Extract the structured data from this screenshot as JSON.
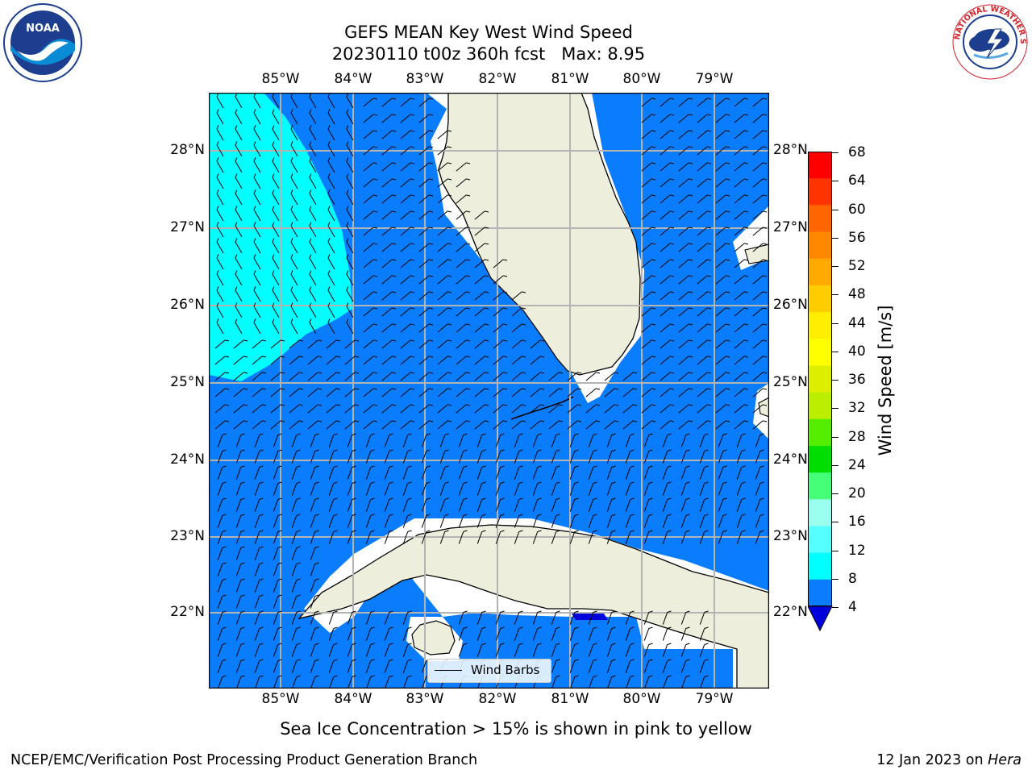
{
  "title": {
    "line1": "GEFS MEAN Key West Wind Speed",
    "line2": "20230110 t00z 360h fcst   Max: 8.95"
  },
  "map": {
    "lon_ticks": [
      "85°W",
      "84°W",
      "83°W",
      "82°W",
      "81°W",
      "80°W",
      "79°W"
    ],
    "lat_ticks": [
      "28°N",
      "27°N",
      "26°N",
      "25°N",
      "24°N",
      "23°N",
      "22°N"
    ],
    "ocean_color": "#0a7dff",
    "high_wind_color": "#00ffff",
    "land_color": "#eeeedc",
    "grid_color": "#b4b4b4",
    "places": [
      "Florida",
      "Cuba",
      "Isla de la Juventud",
      "Florida Keys",
      "Bahamas"
    ]
  },
  "colorbar": {
    "label": "Wind Speed [m/s]",
    "ticks": [
      "68",
      "64",
      "60",
      "56",
      "52",
      "48",
      "44",
      "40",
      "36",
      "32",
      "28",
      "24",
      "20",
      "16",
      "12",
      "8",
      "4"
    ],
    "colors_top_to_bottom": [
      "#ff0000",
      "#ff3300",
      "#ff6600",
      "#ff8800",
      "#ffaa00",
      "#ffcc00",
      "#ffee00",
      "#ffff00",
      "#ddee00",
      "#bbee00",
      "#55ee00",
      "#00dd00",
      "#44ff77",
      "#99ffee",
      "#55ffff",
      "#00ffff",
      "#0a7dff"
    ],
    "under_color": "#0000dd"
  },
  "legend": {
    "label": "Wind Barbs"
  },
  "caption": "Sea Ice Concentration > 15% is shown in pink to yellow",
  "footer": {
    "left": "NCEP/EMC/Verification Post Processing Product Generation Branch",
    "right_prefix": "12 Jan 2023 on ",
    "right_machine": "Hera"
  },
  "logos": {
    "left": {
      "name": "noaa-logo",
      "text": "NOAA",
      "ring_text": "NATIONAL OCEANIC AND ATMOSPHERIC ADMINISTRATION · U.S. DEPARTMENT OF COMMERCE"
    },
    "right": {
      "name": "nws-logo",
      "ring_text": "NATIONAL WEATHER SERVICE"
    }
  }
}
